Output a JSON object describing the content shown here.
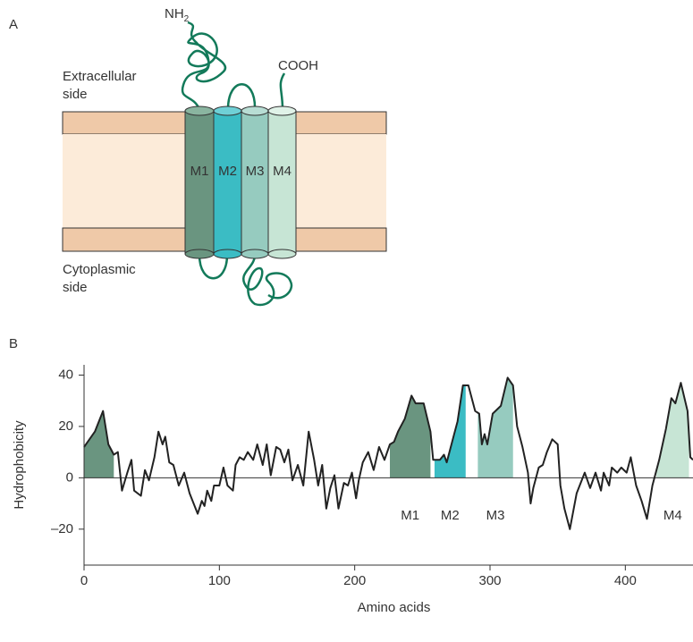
{
  "panel_labels": [
    "A",
    "B"
  ],
  "diagram": {
    "nh2": {
      "main": "NH",
      "sub": "2"
    },
    "cooh": "COOH",
    "extracellular": [
      "Extracellular",
      "side"
    ],
    "cytoplasmic": [
      "Cytoplasmic",
      "side"
    ],
    "helices": [
      "M1",
      "M2",
      "M3",
      "M4"
    ]
  },
  "chart_data": {
    "type": "line",
    "xlabel": "Amino acids",
    "ylabel": "Hydrophobicity",
    "xlim": [
      0,
      450
    ],
    "ylim": [
      -34,
      44
    ],
    "xticks": [
      0,
      100,
      200,
      300,
      400
    ],
    "yticks": [
      {
        "value": -20,
        "label": "–20"
      },
      0,
      20,
      40
    ],
    "x": [
      0,
      8,
      14,
      18,
      22,
      25,
      28,
      32,
      35,
      37,
      42,
      45,
      48,
      52,
      55,
      58,
      60,
      63,
      66,
      70,
      74,
      78,
      84,
      87,
      89,
      91,
      94,
      96,
      100,
      103,
      106,
      110,
      112,
      115,
      118,
      121,
      125,
      128,
      132,
      135,
      138,
      142,
      145,
      148,
      151,
      154,
      158,
      162,
      166,
      170,
      173,
      176,
      179,
      182,
      185,
      188,
      192,
      195,
      198,
      201,
      203,
      206,
      210,
      214,
      218,
      222,
      226,
      229,
      232,
      237,
      242,
      245,
      251,
      256,
      258,
      263,
      266,
      268,
      272,
      276,
      280,
      284,
      289,
      292,
      294,
      296,
      298,
      302,
      308,
      313,
      317,
      320,
      324,
      328,
      330,
      332,
      336,
      339,
      342,
      346,
      350,
      352,
      355,
      359,
      364,
      370,
      374,
      378,
      382,
      384,
      388,
      390,
      394,
      397,
      401,
      404,
      408,
      412,
      416,
      420,
      425,
      430,
      434,
      437,
      441,
      446,
      448,
      450
    ],
    "series": [
      {
        "color": "#222222",
        "values": [
          12,
          18,
          26,
          13,
          9,
          10,
          -5,
          2,
          7,
          -5,
          -7,
          3,
          -1,
          8,
          18,
          13,
          16,
          6,
          5,
          -3,
          2,
          -6,
          -14,
          -9,
          -11,
          -5,
          -9,
          -3,
          -3,
          4,
          -3,
          -5,
          5,
          8,
          7,
          10,
          7,
          13,
          5,
          13,
          1,
          12,
          11,
          6,
          11,
          -1,
          5,
          -3,
          18,
          7,
          -3,
          5,
          -12,
          -4,
          1,
          -12,
          -2,
          -3,
          2,
          -8,
          -1,
          6,
          10,
          3,
          12,
          7,
          13,
          14,
          18,
          23,
          32,
          29,
          29,
          18,
          7,
          7,
          9,
          6,
          14,
          22,
          36,
          36,
          26,
          25,
          13,
          17,
          13,
          25,
          28,
          39,
          36,
          20,
          12,
          2,
          -10,
          -4,
          4,
          5,
          10,
          15,
          13,
          -3,
          -12,
          -20,
          -6,
          2,
          -4,
          2,
          -5,
          2,
          -3,
          4,
          2,
          4,
          2,
          8,
          -3,
          -9,
          -16,
          -3,
          7,
          19,
          31,
          29,
          37,
          26,
          8,
          7
        ]
      }
    ],
    "regions": [
      {
        "label": null,
        "start": 0,
        "end": 22,
        "color": "#6a9580"
      },
      {
        "label": "M1",
        "start": 226,
        "end": 256,
        "color": "#6a9580"
      },
      {
        "label": "M2",
        "start": 259,
        "end": 282,
        "color": "#3bbcc4"
      },
      {
        "label": "M3",
        "start": 291,
        "end": 317,
        "color": "#96cbbf"
      },
      {
        "label": "M4",
        "start": 423,
        "end": 447,
        "color": "#c7e5d5"
      }
    ]
  }
}
